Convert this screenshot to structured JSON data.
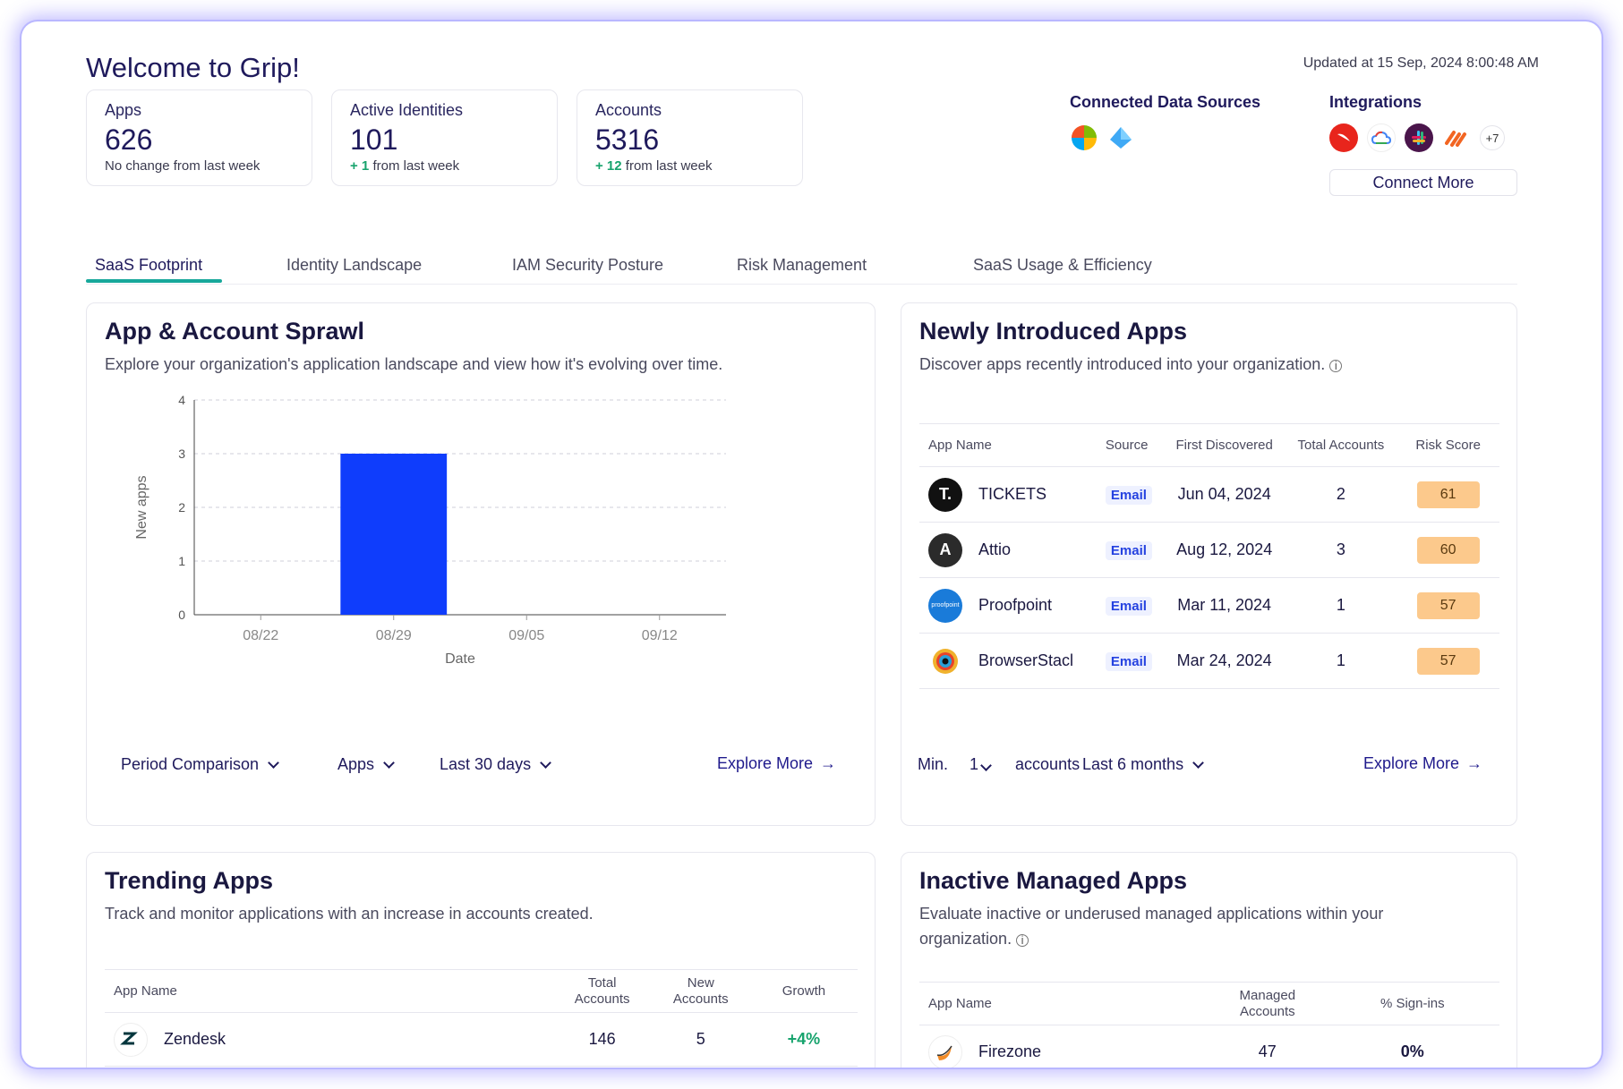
{
  "header": {
    "title": "Welcome to Grip!",
    "updated": "Updated at 15 Sep, 2024 8:00:48 AM"
  },
  "stats": [
    {
      "label": "Apps",
      "value": "626",
      "change_value": "",
      "change_text": "No change from last week"
    },
    {
      "label": "Active Identities",
      "value": "101",
      "change_value": "+ 1",
      "change_text": "from last week"
    },
    {
      "label": "Accounts",
      "value": "5316",
      "change_value": "+ 12",
      "change_text": "from last week"
    }
  ],
  "connected_sources": {
    "title": "Connected Data Sources",
    "icons": [
      "microsoft-icon",
      "azure-icon"
    ]
  },
  "integrations": {
    "title": "Integrations",
    "icons": [
      "crowdstrike-icon",
      "google-cloud-icon",
      "slack-icon",
      "zapier-icon"
    ],
    "more": "+7",
    "connect_label": "Connect More"
  },
  "tabs": [
    {
      "label": "SaaS Footprint",
      "active": true
    },
    {
      "label": "Identity Landscape",
      "active": false
    },
    {
      "label": "IAM Security Posture",
      "active": false
    },
    {
      "label": "Risk Management",
      "active": false
    },
    {
      "label": "SaaS Usage & Efficiency",
      "active": false
    }
  ],
  "sprawl": {
    "title": "App & Account Sprawl",
    "subtitle": "Explore your organization's application landscape and view how it's evolving over time.",
    "controls": [
      "Period Comparison",
      "Apps",
      "Last 30 days"
    ],
    "explore": "Explore More"
  },
  "chart_data": {
    "type": "bar",
    "categories": [
      "08/22",
      "08/29",
      "09/05",
      "09/12"
    ],
    "values": [
      0,
      3,
      0,
      0
    ],
    "xlabel": "Date",
    "ylabel": "New apps",
    "ylim": [
      0,
      4
    ],
    "yticks": [
      0,
      1,
      2,
      3,
      4
    ],
    "grid": true,
    "color": "#0f3dfc"
  },
  "newly": {
    "title": "Newly Introduced Apps",
    "subtitle": "Discover apps recently introduced into your organization.",
    "columns": [
      "App Name",
      "Source",
      "First Discovered",
      "Total Accounts",
      "Risk Score"
    ],
    "rows": [
      {
        "name": "TICKETS",
        "source": "Email",
        "date": "Jun 04, 2024",
        "accounts": "2",
        "risk": "61",
        "logo": "T.",
        "logo_color": "#111111"
      },
      {
        "name": "Attio",
        "source": "Email",
        "date": "Aug 12, 2024",
        "accounts": "3",
        "risk": "60",
        "logo": "A",
        "logo_color": "#2b2b2b"
      },
      {
        "name": "Proofpoint",
        "source": "Email",
        "date": "Mar 11, 2024",
        "accounts": "1",
        "risk": "57",
        "logo": "proofpoint",
        "logo_color": "#1a7bd9"
      },
      {
        "name": "BrowserStacl",
        "source": "Email",
        "date": "Mar 24, 2024",
        "accounts": "1",
        "risk": "57",
        "logo": "●",
        "logo_color": "#f06e2b"
      }
    ],
    "min_label": "Min.",
    "min_value": "1",
    "accounts_label": "accounts",
    "period": "Last 6 months",
    "explore": "Explore More"
  },
  "trending": {
    "title": "Trending Apps",
    "subtitle": "Track and monitor applications with an increase in accounts created.",
    "columns": [
      "App Name",
      "Total Accounts",
      "New Accounts",
      "Growth"
    ],
    "rows": [
      {
        "name": "Zendesk",
        "total": "146",
        "new": "5",
        "growth": "+4%"
      }
    ]
  },
  "inactive": {
    "title": "Inactive Managed Apps",
    "subtitle": "Evaluate inactive or underused managed applications within your organization.",
    "columns": [
      "App Name",
      "Managed Accounts",
      "% Sign-ins"
    ],
    "rows": [
      {
        "name": "Firezone",
        "managed": "47",
        "signins": "0%"
      }
    ]
  }
}
